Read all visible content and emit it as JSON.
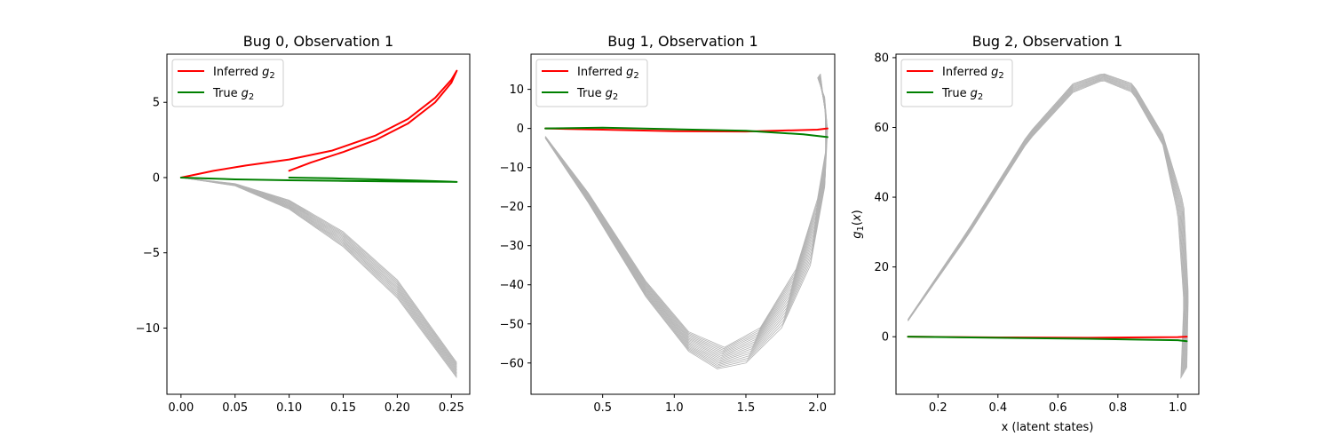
{
  "chart_data": [
    {
      "type": "line",
      "title": "Bug 0, Observation 1",
      "xlabel": "",
      "ylabel": "",
      "xlim": [
        -0.013,
        0.267
      ],
      "ylim": [
        -14.4,
        8.2
      ],
      "xticks": [
        0.0,
        0.05,
        0.1,
        0.15,
        0.2,
        0.25
      ],
      "xtick_labels": [
        "0.00",
        "0.05",
        "0.10",
        "0.15",
        "0.20",
        "0.25"
      ],
      "yticks": [
        5,
        0,
        -5,
        -10
      ],
      "ytick_labels": [
        "5",
        "0",
        "−5",
        "−10"
      ],
      "legend": {
        "placement": "upper-left",
        "entries": [
          {
            "label": "Inferred",
            "sub": "2",
            "color": "#ff0000"
          },
          {
            "label": "True",
            "sub": "2",
            "color": "#008000"
          }
        ]
      },
      "series": [
        {
          "name": "Inferred g2",
          "color": "#ff0000",
          "points": [
            [
              0.0,
              0.0
            ],
            [
              0.03,
              0.45
            ],
            [
              0.06,
              0.8
            ],
            [
              0.1,
              1.2
            ],
            [
              0.14,
              1.8
            ],
            [
              0.18,
              2.8
            ],
            [
              0.21,
              3.9
            ],
            [
              0.235,
              5.3
            ],
            [
              0.25,
              6.5
            ],
            [
              0.255,
              7.1
            ],
            [
              0.25,
              6.3
            ],
            [
              0.235,
              5.0
            ],
            [
              0.21,
              3.6
            ],
            [
              0.18,
              2.5
            ],
            [
              0.15,
              1.7
            ],
            [
              0.12,
              1.0
            ],
            [
              0.1,
              0.45
            ]
          ]
        },
        {
          "name": "True g2",
          "color": "#008000",
          "points": [
            [
              0.0,
              0.0
            ],
            [
              0.05,
              -0.12
            ],
            [
              0.1,
              -0.18
            ],
            [
              0.15,
              -0.22
            ],
            [
              0.2,
              -0.26
            ],
            [
              0.25,
              -0.28
            ],
            [
              0.255,
              -0.29
            ],
            [
              0.22,
              -0.2
            ],
            [
              0.18,
              -0.12
            ],
            [
              0.14,
              -0.05
            ],
            [
              0.1,
              0.0
            ]
          ]
        }
      ],
      "bands": [
        {
          "color": "#b3b3b3",
          "count": 13,
          "points_low": [
            [
              0.0,
              0.0
            ],
            [
              0.05,
              -0.55
            ],
            [
              0.1,
              -2.1
            ],
            [
              0.15,
              -4.6
            ],
            [
              0.2,
              -8.0
            ],
            [
              0.255,
              -13.3
            ]
          ],
          "points_high": [
            [
              0.0,
              0.0
            ],
            [
              0.05,
              -0.4
            ],
            [
              0.1,
              -1.5
            ],
            [
              0.15,
              -3.6
            ],
            [
              0.2,
              -6.8
            ],
            [
              0.255,
              -12.3
            ]
          ]
        }
      ]
    },
    {
      "type": "line",
      "title": "Bug 1, Observation 1",
      "xlabel": "",
      "ylabel": "",
      "xlim": [
        0.0,
        2.12
      ],
      "ylim": [
        -68.0,
        19.0
      ],
      "xticks": [
        0.5,
        1.0,
        1.5,
        2.0
      ],
      "xtick_labels": [
        "0.5",
        "1.0",
        "1.5",
        "2.0"
      ],
      "yticks": [
        10,
        0,
        -10,
        -20,
        -30,
        -40,
        -50,
        -60
      ],
      "ytick_labels": [
        "10",
        "0",
        "−10",
        "−20",
        "−30",
        "−40",
        "−50",
        "−60"
      ],
      "legend": {
        "placement": "upper-left",
        "entries": [
          {
            "label": "Inferred",
            "sub": "2",
            "color": "#ff0000"
          },
          {
            "label": "True",
            "sub": "2",
            "color": "#008000"
          }
        ]
      },
      "series": [
        {
          "name": "Inferred g2",
          "color": "#ff0000",
          "points": [
            [
              0.1,
              0.0
            ],
            [
              0.5,
              -0.3
            ],
            [
              1.0,
              -0.7
            ],
            [
              1.5,
              -0.8
            ],
            [
              2.0,
              -0.3
            ],
            [
              2.07,
              0.0
            ]
          ]
        },
        {
          "name": "True g2",
          "color": "#008000",
          "points": [
            [
              0.1,
              0.0
            ],
            [
              0.5,
              0.2
            ],
            [
              1.0,
              -0.2
            ],
            [
              1.5,
              -0.6
            ],
            [
              1.9,
              -1.5
            ],
            [
              2.07,
              -2.2
            ]
          ]
        }
      ],
      "bands": [
        {
          "color": "#b3b3b3",
          "count": 16,
          "points_low": [
            [
              0.1,
              -2.5
            ],
            [
              0.4,
              -19.0
            ],
            [
              0.8,
              -43.0
            ],
            [
              1.1,
              -57.0
            ],
            [
              1.3,
              -61.5
            ],
            [
              1.5,
              -60.0
            ],
            [
              1.75,
              -51.0
            ],
            [
              1.95,
              -35.0
            ],
            [
              2.05,
              -15.0
            ],
            [
              2.07,
              -0.5
            ],
            [
              2.02,
              14.0
            ]
          ],
          "points_high": [
            [
              0.1,
              -2.0
            ],
            [
              0.4,
              -16.5
            ],
            [
              0.8,
              -39.0
            ],
            [
              1.1,
              -52.0
            ],
            [
              1.35,
              -56.0
            ],
            [
              1.6,
              -51.0
            ],
            [
              1.85,
              -36.0
            ],
            [
              2.0,
              -18.0
            ],
            [
              2.06,
              -5.0
            ],
            [
              2.05,
              8.0
            ],
            [
              2.0,
              13.0
            ]
          ]
        }
      ]
    },
    {
      "type": "line",
      "title": "Bug 2, Observation 1",
      "xlabel": "x (latent states)",
      "ylabel": "g1(x)",
      "xlim": [
        0.06,
        1.07
      ],
      "ylim": [
        -16.5,
        81.0
      ],
      "xticks": [
        0.2,
        0.4,
        0.6,
        0.8,
        1.0
      ],
      "xtick_labels": [
        "0.2",
        "0.4",
        "0.6",
        "0.8",
        "1.0"
      ],
      "yticks": [
        80,
        60,
        40,
        20,
        0
      ],
      "ytick_labels": [
        "80",
        "60",
        "40",
        "20",
        "0"
      ],
      "legend": {
        "placement": "upper-left",
        "entries": [
          {
            "label": "Inferred",
            "sub": "2",
            "color": "#ff0000"
          },
          {
            "label": "True",
            "sub": "2",
            "color": "#008000"
          }
        ]
      },
      "series": [
        {
          "name": "Inferred g2",
          "color": "#ff0000",
          "points": [
            [
              0.1,
              0.0
            ],
            [
              0.4,
              -0.2
            ],
            [
              0.7,
              -0.3
            ],
            [
              1.0,
              -0.1
            ],
            [
              1.03,
              0.0
            ]
          ]
        },
        {
          "name": "True g2",
          "color": "#008000",
          "points": [
            [
              0.1,
              0.0
            ],
            [
              0.4,
              -0.3
            ],
            [
              0.7,
              -0.6
            ],
            [
              1.0,
              -1.0
            ],
            [
              1.03,
              -1.3
            ]
          ]
        }
      ],
      "bands": [
        {
          "color": "#b3b3b3",
          "count": 10,
          "points_low": [
            [
              0.1,
              4.5
            ],
            [
              0.3,
              29.0
            ],
            [
              0.5,
              56.0
            ],
            [
              0.65,
              70.0
            ],
            [
              0.75,
              73.5
            ],
            [
              0.85,
              70.0
            ],
            [
              0.95,
              55.0
            ],
            [
              1.0,
              35.0
            ],
            [
              1.02,
              10.0
            ],
            [
              1.01,
              -12.0
            ]
          ],
          "points_high": [
            [
              0.1,
              5.0
            ],
            [
              0.3,
              30.5
            ],
            [
              0.5,
              58.0
            ],
            [
              0.65,
              72.5
            ],
            [
              0.75,
              75.5
            ],
            [
              0.85,
              72.5
            ],
            [
              0.95,
              58.0
            ],
            [
              1.02,
              38.0
            ],
            [
              1.035,
              12.0
            ],
            [
              1.03,
              -9.0
            ]
          ]
        }
      ]
    }
  ]
}
